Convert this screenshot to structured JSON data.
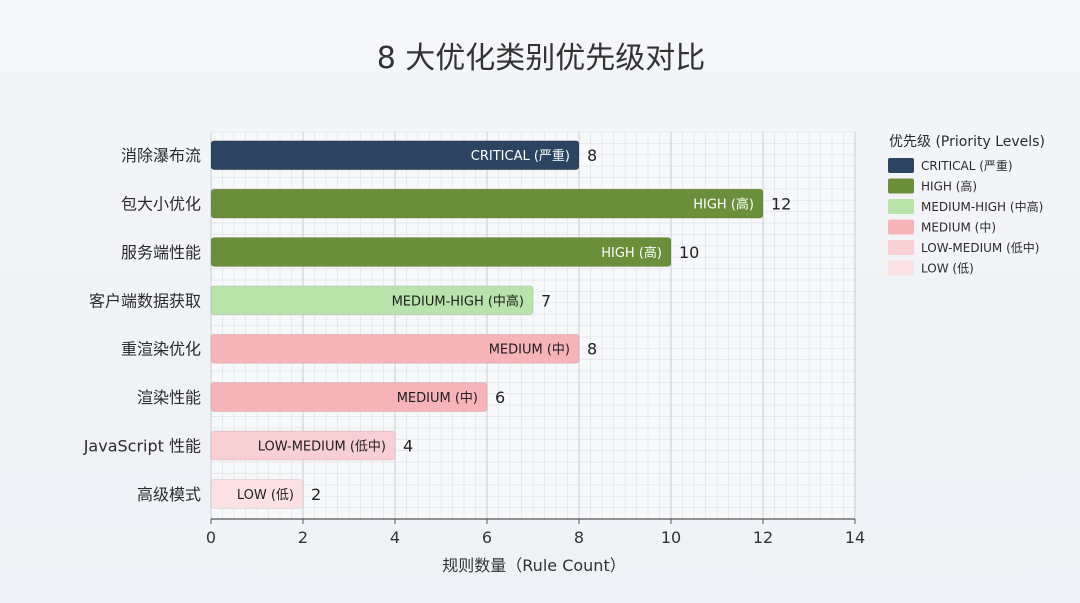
{
  "chart_data": {
    "type": "bar",
    "orientation": "horizontal",
    "title": "8 大优化类别优先级对比",
    "xlabel": "规则数量（Rule Count）",
    "ylabel": "",
    "xlim": [
      0,
      14
    ],
    "xticks": [
      0,
      2,
      4,
      6,
      8,
      10,
      12,
      14
    ],
    "grid": true,
    "legend_placement": "top-right",
    "categories": [
      "消除瀑布流",
      "包大小优化",
      "服务端性能",
      "客户端数据获取",
      "重渲染优化",
      "渲染性能",
      "JavaScript 性能",
      "高级模式"
    ],
    "values": [
      8,
      12,
      10,
      7,
      8,
      6,
      4,
      2
    ],
    "bar_labels": [
      "CRITICAL (严重)",
      "HIGH (高)",
      "HIGH (高)",
      "MEDIUM-HIGH (中高)",
      "MEDIUM (中)",
      "MEDIUM (中)",
      "LOW-MEDIUM (低中)",
      "LOW (低)"
    ],
    "bar_levels": [
      "CRITICAL",
      "HIGH",
      "HIGH",
      "MEDIUM-HIGH",
      "MEDIUM",
      "MEDIUM",
      "LOW-MEDIUM",
      "LOW"
    ],
    "legend": {
      "title": "优先级 (Priority Levels)",
      "entries": [
        {
          "level": "CRITICAL",
          "label": "CRITICAL (严重)",
          "color": "#2c4461"
        },
        {
          "level": "HIGH",
          "label": "HIGH (高)",
          "color": "#6b8e3a"
        },
        {
          "level": "MEDIUM-HIGH",
          "label": "MEDIUM-HIGH (中高)",
          "color": "#b8e3ab"
        },
        {
          "level": "MEDIUM",
          "label": "MEDIUM (中)",
          "color": "#f6b3b8"
        },
        {
          "level": "LOW-MEDIUM",
          "label": "LOW-MEDIUM (低中)",
          "color": "#f8cfd3"
        },
        {
          "level": "LOW",
          "label": "LOW (低)",
          "color": "#fbe1e3"
        }
      ]
    },
    "level_text_colors": {
      "CRITICAL": "#ffffff",
      "HIGH": "#ffffff",
      "MEDIUM-HIGH": "#1f1f1f",
      "MEDIUM": "#1f1f1f",
      "LOW-MEDIUM": "#1f1f1f",
      "LOW": "#1f1f1f"
    }
  }
}
